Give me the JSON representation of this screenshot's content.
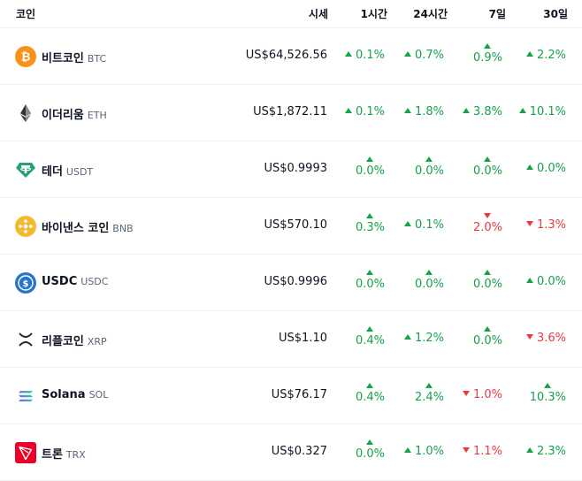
{
  "header": {
    "coin": "코인",
    "price": "시세",
    "h1": "1시간",
    "h24": "24시간",
    "d7": "7일",
    "d30": "30일"
  },
  "colors": {
    "up": "#16a34a",
    "down": "#ea3943"
  },
  "rows": [
    {
      "icon": "bitcoin-icon",
      "name": "비트코인",
      "symbol": "BTC",
      "price": "US$64,526.56",
      "h1": {
        "v": "0.1%",
        "d": "up"
      },
      "h24": {
        "v": "0.7%",
        "d": "up"
      },
      "d7": {
        "v": "0.9%",
        "d": "up"
      },
      "d30": {
        "v": "2.2%",
        "d": "up"
      }
    },
    {
      "icon": "ethereum-icon",
      "name": "이더리움",
      "symbol": "ETH",
      "price": "US$1,872.11",
      "h1": {
        "v": "0.1%",
        "d": "up"
      },
      "h24": {
        "v": "1.8%",
        "d": "up"
      },
      "d7": {
        "v": "3.8%",
        "d": "up"
      },
      "d30": {
        "v": "10.1%",
        "d": "up"
      }
    },
    {
      "icon": "tether-icon",
      "name": "테더",
      "symbol": "USDT",
      "price": "US$0.9993",
      "h1": {
        "v": "0.0%",
        "d": "up"
      },
      "h24": {
        "v": "0.0%",
        "d": "up"
      },
      "d7": {
        "v": "0.0%",
        "d": "up"
      },
      "d30": {
        "v": "0.0%",
        "d": "up"
      }
    },
    {
      "icon": "bnb-icon",
      "name": "바이낸스 코인",
      "symbol": "BNB",
      "price": "US$570.10",
      "h1": {
        "v": "0.3%",
        "d": "up"
      },
      "h24": {
        "v": "0.1%",
        "d": "up"
      },
      "d7": {
        "v": "2.0%",
        "d": "down"
      },
      "d30": {
        "v": "1.3%",
        "d": "down"
      }
    },
    {
      "icon": "usdc-icon",
      "name": "USDC",
      "symbol": "USDC",
      "price": "US$0.9996",
      "h1": {
        "v": "0.0%",
        "d": "up"
      },
      "h24": {
        "v": "0.0%",
        "d": "up"
      },
      "d7": {
        "v": "0.0%",
        "d": "up"
      },
      "d30": {
        "v": "0.0%",
        "d": "up"
      }
    },
    {
      "icon": "xrp-icon",
      "name": "리플코인",
      "symbol": "XRP",
      "price": "US$1.10",
      "h1": {
        "v": "0.4%",
        "d": "up"
      },
      "h24": {
        "v": "1.2%",
        "d": "up"
      },
      "d7": {
        "v": "0.0%",
        "d": "up"
      },
      "d30": {
        "v": "3.6%",
        "d": "down"
      }
    },
    {
      "icon": "solana-icon",
      "name": "Solana",
      "symbol": "SOL",
      "price": "US$76.17",
      "h1": {
        "v": "0.4%",
        "d": "up"
      },
      "h24": {
        "v": "2.4%",
        "d": "up"
      },
      "d7": {
        "v": "1.0%",
        "d": "down"
      },
      "d30": {
        "v": "10.3%",
        "d": "up"
      }
    },
    {
      "icon": "tron-icon",
      "name": "트론",
      "symbol": "TRX",
      "price": "US$0.327",
      "h1": {
        "v": "0.0%",
        "d": "up"
      },
      "h24": {
        "v": "1.0%",
        "d": "up"
      },
      "d7": {
        "v": "1.1%",
        "d": "down"
      },
      "d30": {
        "v": "2.3%",
        "d": "up"
      }
    }
  ]
}
